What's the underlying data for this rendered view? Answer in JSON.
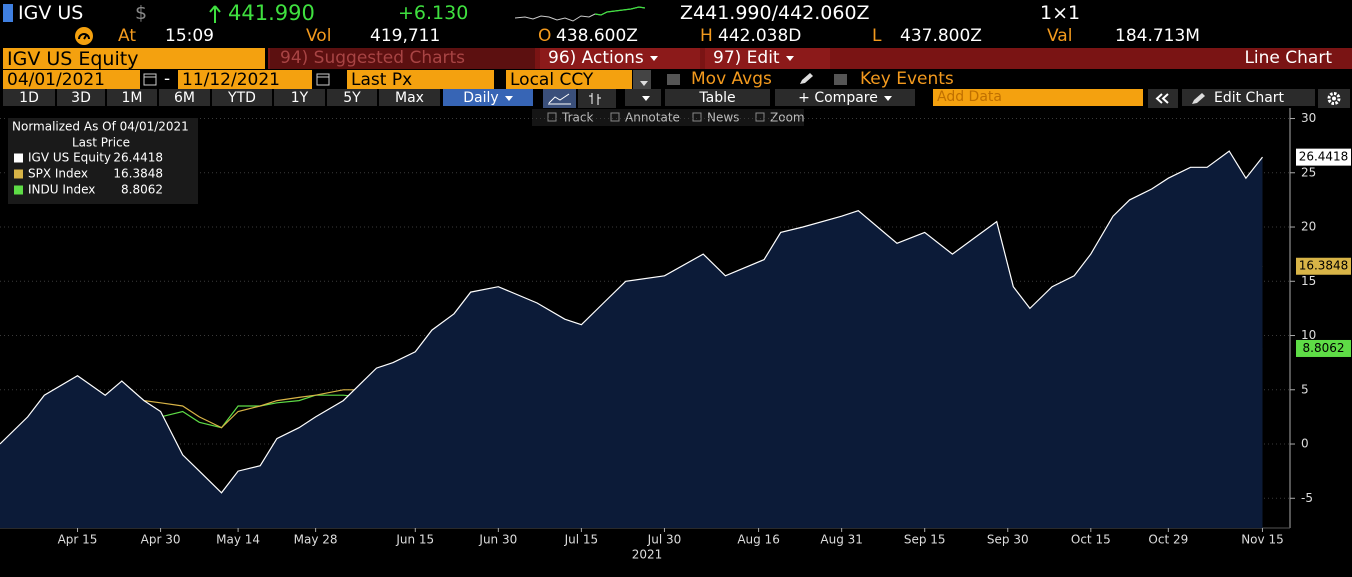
{
  "ui": {
    "ticker": "IGV US",
    "currency": "$",
    "last": "441.990",
    "change": "+6.130",
    "bid_ask": "Z441.990/442.060Z",
    "size": "1×1",
    "time_label": "At",
    "time": "15:09",
    "vol_label": "Vol",
    "vol": "419,711",
    "open_label": "O",
    "open": "438.600Z",
    "high_label": "H",
    "high": "442.038D",
    "low_label": "L",
    "low": "437.800Z",
    "val_label": "Val",
    "val": "184.713M",
    "security": "IGV US Equity",
    "menu": [
      "94) Suggested Charts",
      "96) Actions",
      "97) Edit"
    ],
    "chart_type": "Line Chart",
    "start_date": "04/01/2021",
    "separator": "-",
    "end_date": "11/12/2021",
    "field": "Last Px",
    "currency_mode": "Local CCY",
    "mov_avgs": "Mov Avgs",
    "key_events": "Key Events",
    "periods": [
      "1D",
      "3D",
      "1M",
      "6M",
      "YTD",
      "1Y",
      "5Y",
      "Max"
    ],
    "frequency": "Daily",
    "table": "Table",
    "compare": "+ Compare",
    "add_data": "Add Data",
    "edit_chart": "Edit Chart",
    "tools": [
      "Track",
      "Annotate",
      "News",
      "Zoom"
    ]
  },
  "chart_data": {
    "type": "line",
    "legend_title": "Normalized As Of 04/01/2021",
    "legend_subtitle": "Last Price",
    "legend": "upper left",
    "x_label": "2021",
    "grid": true,
    "x": [
      "2021-04-01",
      "2021-04-06",
      "2021-04-09",
      "2021-04-15",
      "2021-04-20",
      "2021-04-23",
      "2021-04-27",
      "2021-04-30",
      "2021-05-04",
      "2021-05-07",
      "2021-05-11",
      "2021-05-14",
      "2021-05-18",
      "2021-05-21",
      "2021-05-25",
      "2021-05-28",
      "2021-06-02",
      "2021-06-08",
      "2021-06-11",
      "2021-06-15",
      "2021-06-18",
      "2021-06-22",
      "2021-06-25",
      "2021-06-30",
      "2021-07-07",
      "2021-07-12",
      "2021-07-15",
      "2021-07-19",
      "2021-07-23",
      "2021-07-30",
      "2021-08-06",
      "2021-08-10",
      "2021-08-17",
      "2021-08-20",
      "2021-08-24",
      "2021-08-31",
      "2021-09-03",
      "2021-09-10",
      "2021-09-15",
      "2021-09-20",
      "2021-09-24",
      "2021-09-28",
      "2021-10-01",
      "2021-10-04",
      "2021-10-08",
      "2021-10-12",
      "2021-10-15",
      "2021-10-19",
      "2021-10-22",
      "2021-10-26",
      "2021-10-29",
      "2021-11-02",
      "2021-11-05",
      "2021-11-09",
      "2021-11-12",
      "2021-11-15"
    ],
    "xlim": [
      "2021-04-01",
      "2021-11-16"
    ],
    "xticks": [
      {
        "value": "2021-04-15",
        "label": "Apr 15"
      },
      {
        "value": "2021-04-30",
        "label": "Apr 30"
      },
      {
        "value": "2021-05-14",
        "label": "May 14"
      },
      {
        "value": "2021-05-28",
        "label": "May 28"
      },
      {
        "value": "2021-06-15",
        "label": "Jun 15"
      },
      {
        "value": "2021-06-30",
        "label": "Jun 30"
      },
      {
        "value": "2021-07-15",
        "label": "Jul 15"
      },
      {
        "value": "2021-07-30",
        "label": "Jul 30"
      },
      {
        "value": "2021-08-16",
        "label": "Aug 16"
      },
      {
        "value": "2021-08-31",
        "label": "Aug 31"
      },
      {
        "value": "2021-09-15",
        "label": "Sep 15"
      },
      {
        "value": "2021-09-30",
        "label": "Sep 30"
      },
      {
        "value": "2021-10-15",
        "label": "Oct 15"
      },
      {
        "value": "2021-10-29",
        "label": "Oct 29"
      },
      {
        "value": "2021-11-15",
        "label": "Nov 15"
      }
    ],
    "ylim": [
      -7.74,
      30.97
    ],
    "yticks": [
      -5,
      0,
      5,
      10,
      15,
      20,
      25,
      30
    ],
    "series": [
      {
        "name": "IGV US Equity",
        "color": "#ffffff",
        "area": true,
        "values": [
          0,
          2.5,
          4.5,
          6.3,
          4.5,
          5.8,
          4,
          3,
          -1,
          -2.5,
          -4.5,
          -2.5,
          -2,
          0.5,
          1.5,
          2.5,
          4,
          7,
          7.5,
          8.5,
          10.5,
          12,
          14,
          14.5,
          13,
          11.5,
          11,
          13,
          15,
          15.5,
          17.5,
          15.5,
          17,
          19.5,
          20,
          21,
          21.5,
          18.5,
          19.5,
          17.5,
          19,
          20.5,
          14.5,
          12.5,
          14.5,
          15.5,
          17.5,
          21,
          22.5,
          23.5,
          24.5,
          25.5,
          25.5,
          27,
          24.5,
          26.4418
        ]
      },
      {
        "name": "SPX Index",
        "color": "#d8b447",
        "values": [
          0,
          1.5,
          3,
          4,
          3.5,
          4.5,
          4,
          3.8,
          3.5,
          2.5,
          1.5,
          3,
          3.5,
          4,
          4.3,
          4.5,
          5,
          5,
          5.2,
          5.5,
          4.5,
          6,
          7,
          8,
          8.5,
          8,
          9,
          6,
          9,
          10,
          11,
          10.5,
          12,
          11.5,
          12,
          12.8,
          13,
          12,
          11,
          8.5,
          10,
          10.5,
          8,
          7,
          8.5,
          9,
          11,
          12,
          12.5,
          13.5,
          14,
          15,
          16,
          17,
          15.8,
          16.3848
        ]
      },
      {
        "name": "INDU Index",
        "color": "#5edc46",
        "values": [
          0,
          1.2,
          2.5,
          3,
          2.5,
          3,
          2.6,
          2.5,
          3,
          2,
          1.5,
          3.5,
          3.5,
          3.8,
          4,
          4.5,
          4.5,
          4.2,
          4.3,
          4,
          0.5,
          3.5,
          4.5,
          5,
          5,
          4.5,
          5,
          3,
          5.5,
          6.5,
          7,
          6,
          7.5,
          7,
          7.2,
          7,
          7,
          6.5,
          5,
          2.5,
          4.5,
          5,
          2.5,
          2.5,
          4.5,
          4.5,
          7,
          7.5,
          8,
          8,
          8,
          8.5,
          9,
          10,
          8.5,
          8.8062
        ]
      }
    ]
  }
}
